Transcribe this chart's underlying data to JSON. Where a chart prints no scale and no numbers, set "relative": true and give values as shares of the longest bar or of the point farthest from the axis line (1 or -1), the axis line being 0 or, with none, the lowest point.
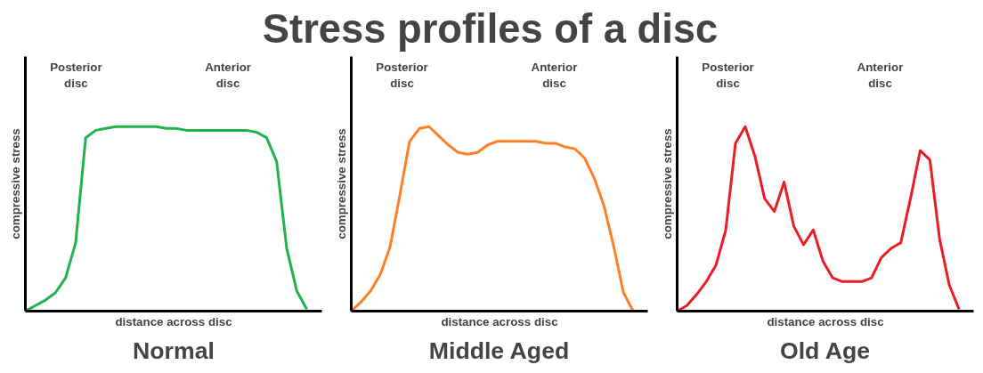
{
  "chart_data": [
    {
      "type": "other",
      "title": "Stress profiles of a disc"
    },
    {
      "type": "line",
      "title": "Normal",
      "xlabel": "distance across disc",
      "ylabel": "compressive stress",
      "relative": true,
      "tick_labels": false,
      "annotations": [
        "Posterior disc",
        "Anterior disc"
      ],
      "categories": [
        null,
        null,
        null,
        null,
        null,
        null,
        null,
        null,
        null,
        null,
        null,
        null,
        null,
        null,
        null,
        null,
        null,
        null,
        null,
        null,
        null,
        null,
        null,
        null,
        null,
        null,
        null,
        null,
        null
      ],
      "series": [
        {
          "color": "#22b14c",
          "values": [
            0,
            0.03,
            0.06,
            0.1,
            0.18,
            0.37,
            0.94,
            0.98,
            0.99,
            1,
            1,
            1,
            1,
            1,
            0.99,
            0.99,
            0.98,
            0.98,
            0.98,
            0.98,
            0.98,
            0.98,
            0.98,
            0.97,
            0.94,
            0.81,
            0.34,
            0.11,
            0.01
          ]
        }
      ]
    },
    {
      "type": "line",
      "title": "Middle Aged",
      "xlabel": "distance across disc",
      "ylabel": "compressive stress",
      "relative": true,
      "tick_labels": false,
      "annotations": [
        "Posterior disc",
        "Anterior disc"
      ],
      "categories": [
        null,
        null,
        null,
        null,
        null,
        null,
        null,
        null,
        null,
        null,
        null,
        null,
        null,
        null,
        null,
        null,
        null,
        null,
        null,
        null,
        null,
        null,
        null,
        null,
        null,
        null,
        null,
        null,
        null,
        null
      ],
      "series": [
        {
          "color": "#ff7f27",
          "values": [
            0,
            0.05,
            0.11,
            0.2,
            0.35,
            0.63,
            0.92,
            0.99,
            1,
            0.95,
            0.9,
            0.86,
            0.85,
            0.86,
            0.9,
            0.92,
            0.92,
            0.92,
            0.92,
            0.92,
            0.91,
            0.91,
            0.89,
            0.88,
            0.83,
            0.72,
            0.57,
            0.35,
            0.1,
            0
          ]
        }
      ]
    },
    {
      "type": "line",
      "title": "Old Age",
      "xlabel": "distance across disc",
      "ylabel": "compressive stress",
      "relative": true,
      "tick_labels": false,
      "annotations": [
        "Posterior disc",
        "Anterior disc"
      ],
      "categories": [
        null,
        null,
        null,
        null,
        null,
        null,
        null,
        null,
        null,
        null,
        null,
        null,
        null,
        null,
        null,
        null,
        null,
        null,
        null,
        null,
        null,
        null,
        null,
        null,
        null,
        null,
        null,
        null,
        null,
        null
      ],
      "series": [
        {
          "color": "#ed1c24",
          "values": [
            0,
            0.03,
            0.09,
            0.16,
            0.25,
            0.44,
            0.91,
            1,
            0.84,
            0.61,
            0.54,
            0.7,
            0.46,
            0.36,
            0.44,
            0.27,
            0.18,
            0.16,
            0.16,
            0.16,
            0.18,
            0.29,
            0.34,
            0.37,
            0.61,
            0.87,
            0.82,
            0.39,
            0.14,
            0.01
          ]
        }
      ]
    }
  ]
}
